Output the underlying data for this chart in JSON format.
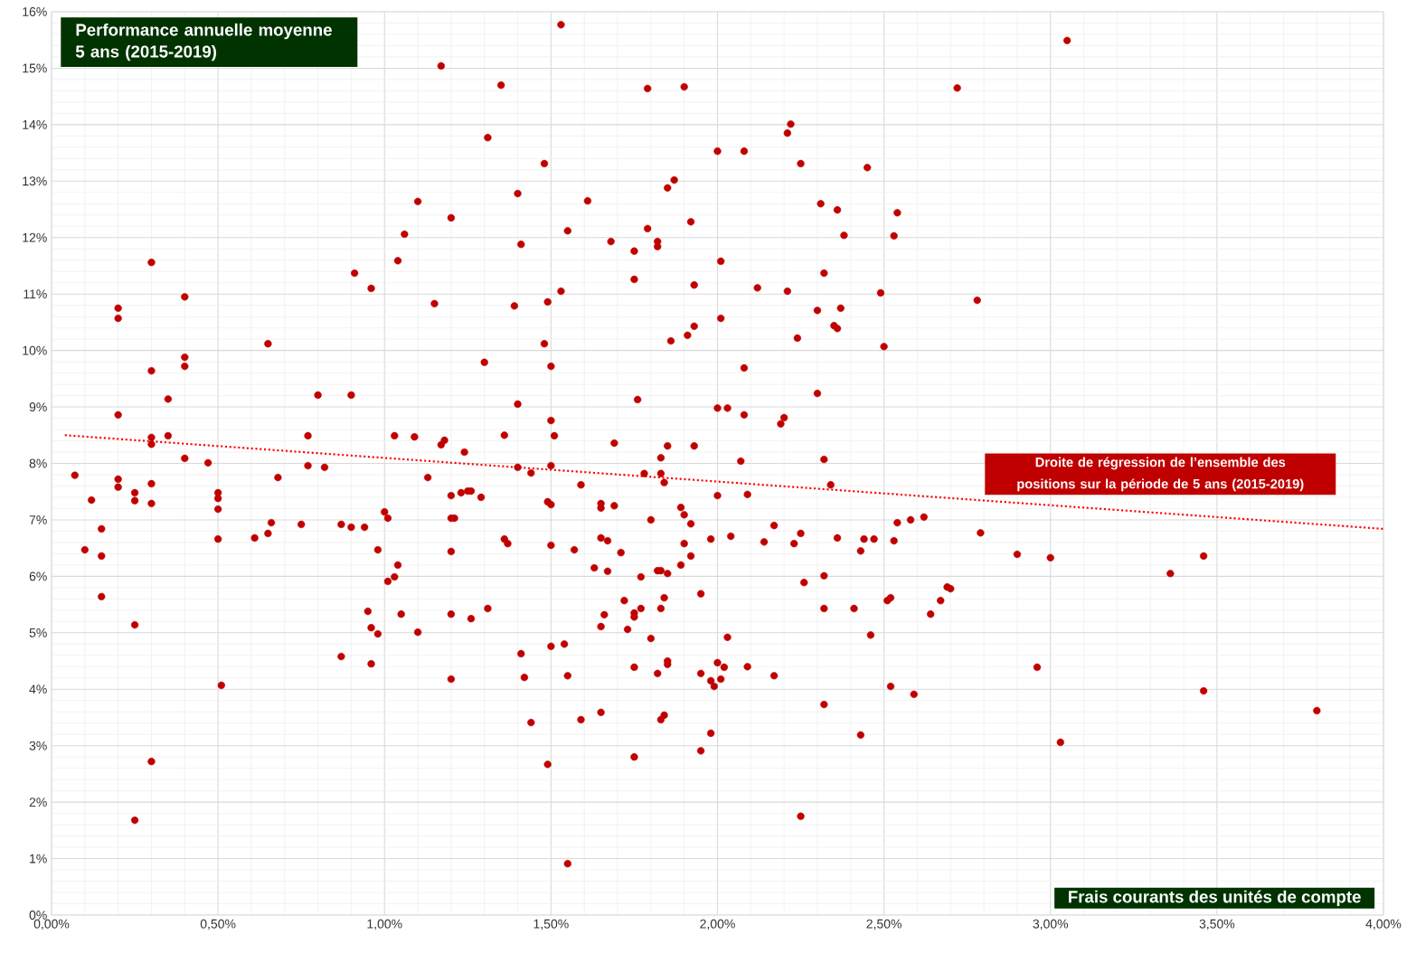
{
  "chart_data": {
    "type": "scatter",
    "title": "Performance annuelle moyenne 5 ans (2015-2019)",
    "xlabel": "Frais courants des unités de compte",
    "annotations": [
      {
        "text": "Droite de régression de l’ensemble des positions sur la période de 5 ans (2015-2019)",
        "x": 3.33,
        "y": 7.12
      }
    ],
    "xlim": [
      0,
      4
    ],
    "ylim": [
      0,
      16
    ],
    "grid": true,
    "xticks": [
      {
        "value": 0,
        "label": "0,00%"
      },
      {
        "value": 0.5,
        "label": "0,50%"
      },
      {
        "value": 1,
        "label": "1,00%"
      },
      {
        "value": 1.5,
        "label": "1,50%"
      },
      {
        "value": 2,
        "label": "2,00%"
      },
      {
        "value": 2.5,
        "label": "2,50%"
      },
      {
        "value": 3,
        "label": "3,00%"
      },
      {
        "value": 3.5,
        "label": "3,50%"
      },
      {
        "value": 4,
        "label": "4,00%"
      }
    ],
    "yticks": [
      {
        "value": 0,
        "label": "0%"
      },
      {
        "value": 1,
        "label": "1%"
      },
      {
        "value": 2,
        "label": "2%"
      },
      {
        "value": 3,
        "label": "3%"
      },
      {
        "value": 4,
        "label": "4%"
      },
      {
        "value": 5,
        "label": "5%"
      },
      {
        "value": 6,
        "label": "6%"
      },
      {
        "value": 7,
        "label": "7%"
      },
      {
        "value": 8,
        "label": "8%"
      },
      {
        "value": 9,
        "label": "9%"
      },
      {
        "value": 10,
        "label": "10%"
      },
      {
        "value": 11,
        "label": "11%"
      },
      {
        "value": 12,
        "label": "12%"
      },
      {
        "value": 13,
        "label": "13%"
      },
      {
        "value": 14,
        "label": "14%"
      },
      {
        "value": 15,
        "label": "15%"
      },
      {
        "value": 16,
        "label": "16%"
      }
    ],
    "series": [
      {
        "marker": "circle",
        "color": "#c00000",
        "x": [
          0.07,
          0.1,
          0.12,
          0.15,
          0.15,
          0.15,
          0.2,
          0.2,
          0.2,
          0.2,
          0.2,
          0.25,
          0.25,
          0.25,
          0.25,
          0.3,
          0.3,
          0.3,
          0.3,
          0.3,
          0.3,
          0.3,
          0.35,
          0.35,
          0.4,
          0.4,
          0.4,
          0.4,
          0.47,
          0.5,
          0.5,
          0.5,
          0.5,
          0.51,
          0.61,
          0.65,
          0.65,
          0.66,
          0.68,
          0.75,
          0.77,
          0.77,
          0.8,
          0.82,
          0.87,
          0.87,
          0.9,
          0.9,
          0.91,
          0.94,
          0.95,
          0.96,
          0.96,
          0.96,
          0.98,
          0.98,
          1.0,
          1.01,
          1.01,
          1.03,
          1.03,
          1.04,
          1.04,
          1.05,
          1.06,
          1.09,
          1.1,
          1.1,
          1.13,
          1.15,
          1.17,
          1.17,
          1.18,
          1.2,
          1.2,
          1.2,
          1.2,
          1.2,
          1.2,
          1.21,
          1.23,
          1.24,
          1.25,
          1.26,
          1.26,
          1.29,
          1.3,
          1.31,
          1.31,
          1.35,
          1.36,
          1.36,
          1.37,
          1.39,
          1.4,
          1.4,
          1.4,
          1.41,
          1.41,
          1.42,
          1.44,
          1.44,
          1.48,
          1.48,
          1.49,
          1.49,
          1.49,
          1.5,
          1.5,
          1.5,
          1.5,
          1.5,
          1.5,
          1.51,
          1.53,
          1.53,
          1.54,
          1.55,
          1.55,
          1.55,
          1.57,
          1.59,
          1.59,
          1.61,
          1.63,
          1.65,
          1.65,
          1.65,
          1.65,
          1.65,
          1.66,
          1.67,
          1.67,
          1.68,
          1.69,
          1.69,
          1.71,
          1.72,
          1.73,
          1.75,
          1.75,
          1.75,
          1.75,
          1.75,
          1.75,
          1.76,
          1.77,
          1.77,
          1.78,
          1.79,
          1.79,
          1.8,
          1.8,
          1.82,
          1.82,
          1.82,
          1.82,
          1.83,
          1.83,
          1.83,
          1.83,
          1.83,
          1.84,
          1.84,
          1.84,
          1.85,
          1.85,
          1.85,
          1.85,
          1.85,
          1.86,
          1.87,
          1.89,
          1.89,
          1.9,
          1.9,
          1.9,
          1.91,
          1.92,
          1.92,
          1.92,
          1.93,
          1.93,
          1.93,
          1.95,
          1.95,
          1.95,
          1.98,
          1.98,
          1.98,
          1.99,
          2.0,
          2.0,
          2.0,
          2.0,
          2.01,
          2.01,
          2.01,
          2.02,
          2.03,
          2.03,
          2.04,
          2.07,
          2.08,
          2.08,
          2.08,
          2.09,
          2.09,
          2.12,
          2.14,
          2.17,
          2.17,
          2.19,
          2.2,
          2.21,
          2.21,
          2.22,
          2.23,
          2.24,
          2.25,
          2.25,
          2.25,
          2.26,
          2.3,
          2.3,
          2.31,
          2.32,
          2.32,
          2.32,
          2.32,
          2.32,
          2.34,
          2.35,
          2.36,
          2.36,
          2.36,
          2.37,
          2.38,
          2.41,
          2.43,
          2.43,
          2.44,
          2.45,
          2.46,
          2.47,
          2.49,
          2.5,
          2.51,
          2.52,
          2.52,
          2.53,
          2.53,
          2.54,
          2.54,
          2.58,
          2.59,
          2.62,
          2.64,
          2.67,
          2.69,
          2.7,
          2.72,
          2.78,
          2.79,
          2.9,
          2.96,
          3.0,
          3.03,
          3.05,
          3.36,
          3.46,
          3.46,
          3.8
        ],
        "values": [
          7.79,
          6.47,
          7.35,
          6.84,
          6.36,
          5.64,
          10.75,
          10.57,
          8.86,
          7.72,
          7.58,
          7.48,
          7.34,
          5.14,
          1.68,
          11.56,
          9.64,
          8.46,
          8.34,
          7.64,
          7.29,
          2.72,
          9.14,
          8.49,
          10.95,
          9.88,
          9.72,
          8.09,
          8.01,
          7.48,
          7.38,
          7.19,
          6.66,
          4.07,
          6.68,
          10.12,
          6.76,
          6.95,
          7.75,
          6.92,
          8.49,
          7.96,
          9.21,
          7.93,
          6.92,
          4.58,
          6.87,
          9.21,
          11.37,
          6.87,
          5.38,
          11.1,
          5.09,
          4.45,
          6.47,
          4.98,
          7.14,
          7.03,
          5.91,
          8.49,
          5.99,
          11.59,
          6.2,
          5.33,
          12.06,
          8.47,
          12.64,
          5.01,
          7.75,
          10.83,
          15.04,
          8.33,
          8.41,
          12.35,
          7.43,
          7.03,
          6.44,
          5.33,
          4.18,
          7.03,
          7.48,
          8.2,
          7.51,
          7.51,
          5.25,
          7.4,
          9.79,
          13.77,
          5.43,
          14.7,
          8.5,
          6.66,
          6.58,
          10.79,
          12.78,
          9.05,
          7.93,
          11.88,
          4.63,
          4.21,
          7.83,
          3.41,
          13.31,
          10.12,
          10.86,
          7.32,
          2.67,
          8.76,
          9.72,
          7.96,
          7.27,
          6.55,
          4.76,
          8.49,
          15.77,
          11.05,
          4.8,
          12.12,
          4.24,
          0.91,
          6.47,
          7.62,
          3.46,
          12.65,
          6.15,
          7.29,
          7.21,
          6.68,
          5.11,
          3.59,
          5.32,
          6.63,
          6.09,
          11.93,
          8.36,
          7.25,
          6.42,
          5.57,
          5.06,
          11.76,
          11.26,
          5.35,
          5.28,
          4.39,
          2.8,
          9.13,
          5.99,
          5.43,
          7.82,
          14.64,
          12.16,
          7.0,
          4.9,
          11.93,
          11.84,
          6.1,
          4.28,
          8.1,
          7.82,
          6.1,
          5.43,
          3.46,
          7.66,
          5.62,
          3.54,
          12.88,
          8.31,
          6.05,
          4.5,
          4.44,
          10.17,
          13.02,
          7.22,
          6.2,
          14.67,
          7.09,
          6.58,
          10.27,
          12.28,
          6.93,
          6.36,
          11.16,
          10.43,
          8.31,
          5.69,
          4.28,
          2.91,
          6.66,
          4.15,
          3.22,
          4.05,
          8.98,
          7.43,
          4.47,
          13.53,
          11.58,
          10.57,
          4.18,
          4.39,
          8.98,
          4.92,
          6.71,
          8.04,
          13.53,
          9.69,
          8.86,
          7.45,
          4.4,
          11.11,
          6.61,
          6.9,
          4.24,
          8.7,
          8.81,
          13.85,
          11.05,
          14.01,
          6.58,
          10.22,
          13.31,
          6.76,
          1.75,
          5.89,
          9.24,
          10.71,
          12.6,
          11.37,
          8.07,
          6.01,
          5.43,
          3.73,
          7.62,
          10.44,
          10.39,
          12.49,
          6.68,
          10.75,
          12.04,
          5.43,
          6.45,
          3.19,
          6.66,
          13.24,
          4.96,
          6.66,
          11.02,
          10.07,
          5.57,
          5.62,
          4.05,
          12.03,
          6.63,
          12.44,
          6.95,
          7.0,
          3.91,
          7.05,
          5.33,
          5.57,
          5.81,
          5.78,
          14.65,
          10.89,
          6.77,
          6.39,
          4.39,
          6.33,
          3.06,
          15.49,
          6.05,
          6.36,
          3.97,
          3.62
        ]
      },
      {
        "type": "line",
        "line_style": "dotted",
        "marker": "none",
        "color": "#ff0000",
        "x": [
          0.04,
          4.0
        ],
        "values": [
          8.5,
          6.84
        ]
      }
    ]
  }
}
